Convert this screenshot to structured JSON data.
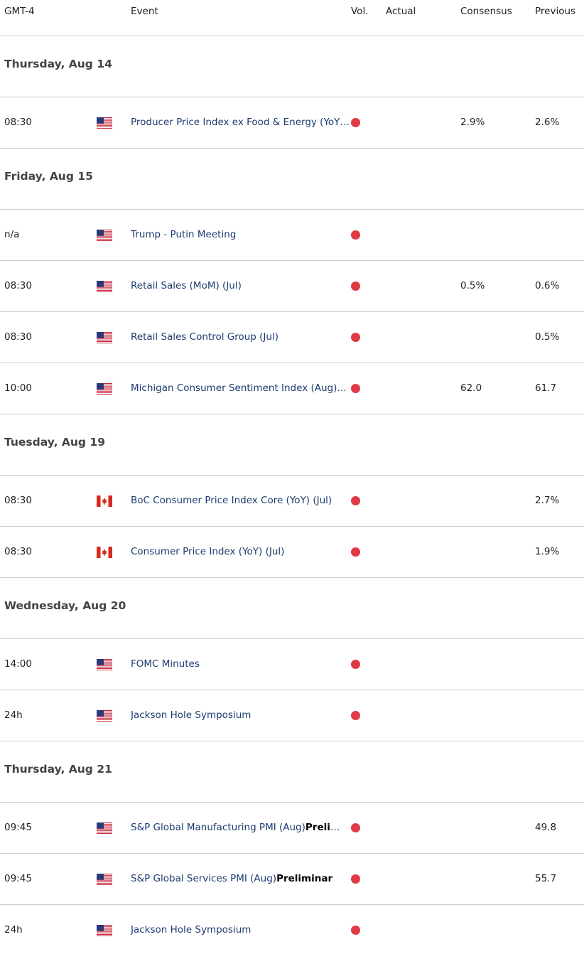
{
  "header": {
    "columns": [
      "GMT-4",
      "Event",
      "Vol.",
      "Actual",
      "Consensus",
      "Previous"
    ]
  },
  "days": [
    {
      "date": "Thursday, Aug 14",
      "events": [
        {
          "time": "08:30",
          "flag": "US",
          "event": "Producer Price Index ex Food & Energy (YoY) (Jul)",
          "consensus": "2.9%",
          "previous": "2.6%"
        }
      ]
    },
    {
      "date": "Friday, Aug 15",
      "events": [
        {
          "time": "n/a",
          "flag": "US",
          "event": "Trump - Putin Meeting"
        },
        {
          "time": "08:30",
          "flag": "US",
          "event": "Retail Sales (MoM) (Jul)",
          "consensus": "0.5%",
          "previous": "0.6%"
        },
        {
          "time": "08:30",
          "flag": "US",
          "event": "Retail Sales Control Group (Jul)",
          "previous": "0.5%"
        },
        {
          "time": "10:00",
          "flag": "US",
          "event": "Michigan Consumer Sentiment Index (Aug) Preliminar",
          "consensus": "62.0",
          "previous": "61.7"
        }
      ]
    },
    {
      "date": "Tuesday, Aug 19",
      "events": [
        {
          "time": "08:30",
          "flag": "CA",
          "event": "BoC Consumer Price Index Core (YoY) (Jul)",
          "previous": "2.7%"
        },
        {
          "time": "08:30",
          "flag": "CA",
          "event": "Consumer Price Index (YoY) (Jul)",
          "previous": "1.9%"
        }
      ]
    },
    {
      "date": "Wednesday, Aug 20",
      "events": [
        {
          "time": "14:00",
          "flag": "US",
          "event": "FOMC Minutes"
        },
        {
          "time": "24h",
          "flag": "US",
          "event": "Jackson Hole Symposium"
        }
      ]
    },
    {
      "date": "Thursday, Aug 21",
      "events": [
        {
          "time": "09:45",
          "flag": "US",
          "event": "S&P Global Manufacturing PMI (Aug)",
          "event_bold": "Preliminar",
          "previous": "49.8"
        },
        {
          "time": "09:45",
          "flag": "US",
          "event": "S&P Global Services PMI (Aug)",
          "event_bold": "Preliminar",
          "previous": "55.7"
        },
        {
          "time": "24h",
          "flag": "US",
          "event": "Jackson Hole Symposium"
        }
      ]
    }
  ]
}
